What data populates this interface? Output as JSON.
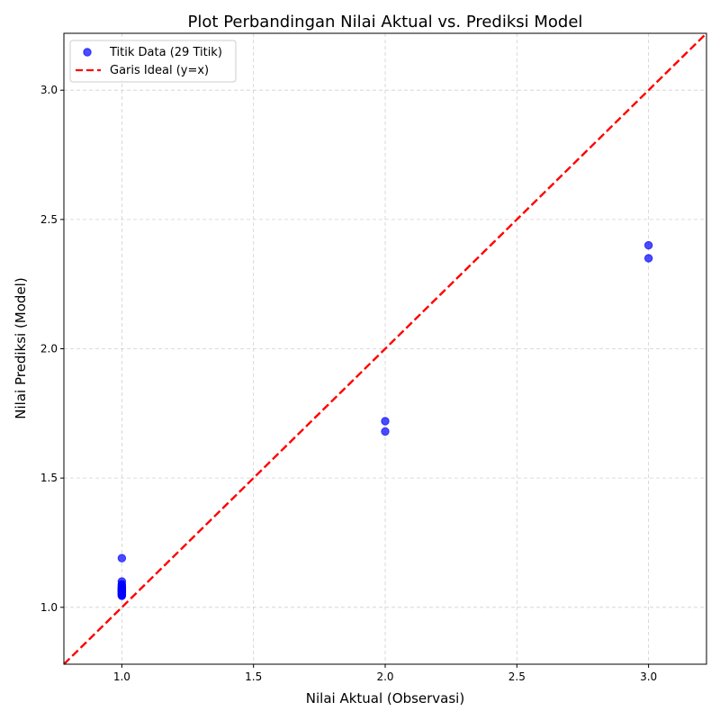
{
  "chart_data": {
    "type": "scatter",
    "title": "Plot Perbandingan Nilai Aktual vs. Prediksi Model",
    "xlabel": "Nilai Aktual (Observasi)",
    "ylabel": "Nilai Prediksi (Model)",
    "xlim": [
      0.78,
      3.22
    ],
    "ylim": [
      0.78,
      3.22
    ],
    "xticks": [
      1.0,
      1.5,
      2.0,
      2.5,
      3.0
    ],
    "yticks": [
      1.0,
      1.5,
      2.0,
      2.5,
      3.0
    ],
    "xtick_labels": [
      "1.0",
      "1.5",
      "2.0",
      "2.5",
      "3.0"
    ],
    "ytick_labels": [
      "1.0",
      "1.5",
      "2.0",
      "2.5",
      "3.0"
    ],
    "grid": true,
    "legend_position": "top-left",
    "series": [
      {
        "name": "Titik Data (29 Titik)",
        "kind": "scatter",
        "color": "#0000ff",
        "x": [
          1,
          1,
          1,
          1,
          1,
          1,
          1,
          1,
          1,
          1,
          1,
          1,
          1,
          1,
          1,
          1,
          1,
          1,
          1,
          1,
          1,
          1,
          1,
          1,
          1,
          2,
          2,
          3,
          3
        ],
        "y": [
          1.19,
          1.1,
          1.09,
          1.085,
          1.08,
          1.08,
          1.075,
          1.075,
          1.07,
          1.07,
          1.07,
          1.065,
          1.065,
          1.065,
          1.06,
          1.06,
          1.06,
          1.055,
          1.055,
          1.055,
          1.05,
          1.05,
          1.05,
          1.045,
          1.045,
          1.72,
          1.68,
          2.4,
          2.35
        ]
      },
      {
        "name": "Garis Ideal (y=x)",
        "kind": "line",
        "style": "dashed",
        "color": "#ff0000",
        "x": [
          0.78,
          3.22
        ],
        "y": [
          0.78,
          3.22
        ]
      }
    ]
  }
}
